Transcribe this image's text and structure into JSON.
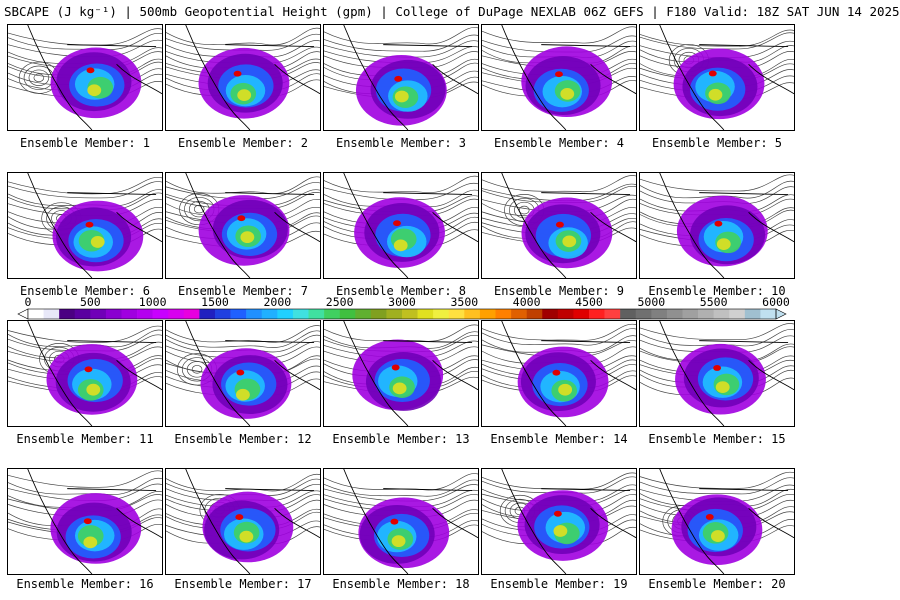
{
  "title": "SBCAPE (J kg⁻¹) | 500mb Geopotential Height (gpm) | College of DuPage NEXLAB 06Z GEFS | F180 Valid: 18Z SAT JUN 14 2025",
  "panels": [
    {
      "label": "Ensemble Member: 1",
      "low": true
    },
    {
      "label": "Ensemble Member: 2",
      "low": false
    },
    {
      "label": "Ensemble Member: 3",
      "low": false
    },
    {
      "label": "Ensemble Member: 4",
      "low": false
    },
    {
      "label": "Ensemble Member: 5",
      "low": true
    },
    {
      "label": "Ensemble Member: 6",
      "low": true
    },
    {
      "label": "Ensemble Member: 7",
      "low": true
    },
    {
      "label": "Ensemble Member: 8",
      "low": false
    },
    {
      "label": "Ensemble Member: 9",
      "low": true
    },
    {
      "label": "Ensemble Member: 10",
      "low": false
    },
    {
      "label": "Ensemble Member: 11",
      "low": true
    },
    {
      "label": "Ensemble Member: 12",
      "low": true
    },
    {
      "label": "Ensemble Member: 13",
      "low": false
    },
    {
      "label": "Ensemble Member: 14",
      "low": false
    },
    {
      "label": "Ensemble Member: 15",
      "low": false
    },
    {
      "label": "Ensemble Member: 16",
      "low": false
    },
    {
      "label": "Ensemble Member: 17",
      "low": true
    },
    {
      "label": "Ensemble Member: 18",
      "low": false
    },
    {
      "label": "Ensemble Member: 19",
      "low": true
    },
    {
      "label": "Ensemble Member: 20",
      "low": true
    }
  ],
  "colorbar": {
    "ticks": [
      "0",
      "500",
      "1000",
      "1500",
      "2000",
      "2500",
      "3000",
      "3500",
      "4000",
      "4500",
      "5000",
      "5500",
      "6000"
    ],
    "colors": [
      "#ffffff",
      "#e8e8f8",
      "#4b0082",
      "#5a00a0",
      "#7000b8",
      "#8a00d0",
      "#a000e0",
      "#b400f0",
      "#c800ff",
      "#d800f0",
      "#e800e0",
      "#2020c0",
      "#2040e0",
      "#2060ff",
      "#2090ff",
      "#20b0ff",
      "#20d0ff",
      "#40e0e0",
      "#40e0a0",
      "#40d060",
      "#40c040",
      "#60b030",
      "#80a020",
      "#a0b020",
      "#c0c020",
      "#e0e020",
      "#f0f040",
      "#ffe040",
      "#ffc020",
      "#ffa000",
      "#ff8000",
      "#e06000",
      "#c04000",
      "#a00000",
      "#c00000",
      "#e00000",
      "#ff2020",
      "#ff4040",
      "#606060",
      "#707070",
      "#808080",
      "#909090",
      "#a0a0a0",
      "#b0b0b0",
      "#c0c0c0",
      "#d0d0d0",
      "#a0c0d0",
      "#c0e0f0"
    ]
  }
}
